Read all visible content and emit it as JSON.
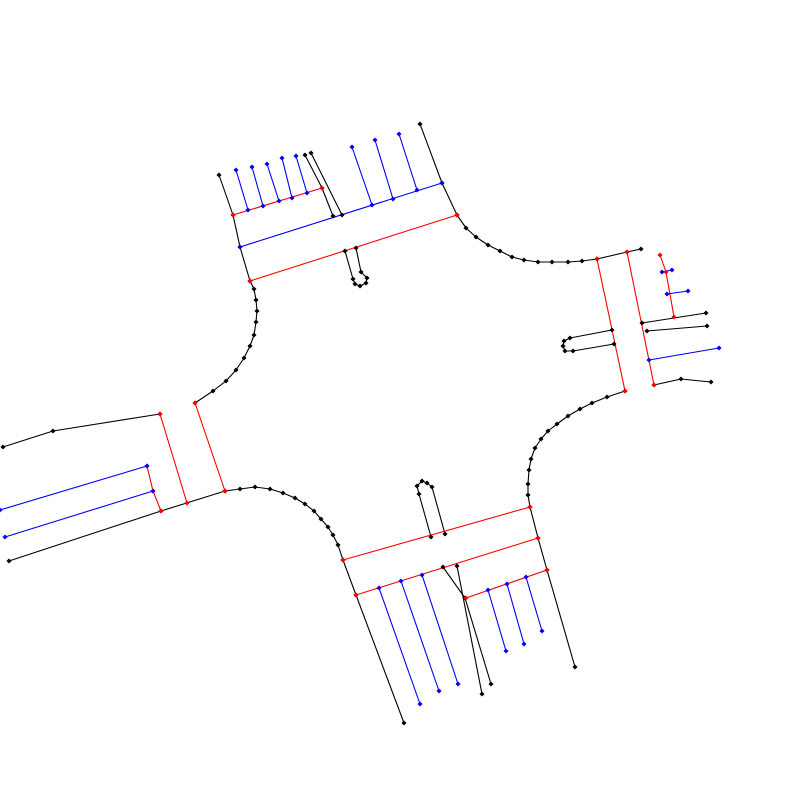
{
  "map": {
    "kind": "intersection-lane-schematic",
    "colors": {
      "boundary": "#000000",
      "stop_line": "#ff0000",
      "lane_line": "#0000ff",
      "background": "#ffffff"
    },
    "layers": [
      "road-boundaries",
      "stop-lines",
      "lane-markings",
      "medians",
      "vertices"
    ],
    "approaches": [
      "north",
      "east",
      "south",
      "west"
    ],
    "labels": []
  }
}
